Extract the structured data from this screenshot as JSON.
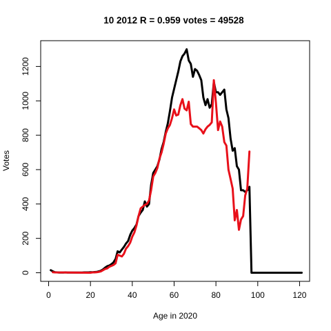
{
  "chart_data": {
    "type": "line",
    "title": "10 2012 R = 0.959 votes = 49528",
    "xlabel": "Age in 2020",
    "ylabel": "Votes",
    "xlim": [
      -3.8,
      124.8
    ],
    "ylim": [
      -50,
      1350
    ],
    "xticks": [
      0,
      20,
      40,
      60,
      80,
      100,
      120
    ],
    "yticks": [
      0,
      200,
      400,
      600,
      800,
      1000,
      1200
    ],
    "grid": false,
    "legend": "none",
    "series": [
      {
        "color": "#000000",
        "points": [
          [
            1,
            15
          ],
          [
            2,
            8
          ],
          [
            3,
            3
          ],
          [
            4,
            2
          ],
          [
            5,
            1
          ],
          [
            6,
            1
          ],
          [
            7,
            1
          ],
          [
            8,
            2
          ],
          [
            9,
            1
          ],
          [
            10,
            1
          ],
          [
            11,
            1
          ],
          [
            12,
            1
          ],
          [
            13,
            1
          ],
          [
            14,
            1
          ],
          [
            15,
            1
          ],
          [
            16,
            1
          ],
          [
            17,
            2
          ],
          [
            18,
            2
          ],
          [
            19,
            2
          ],
          [
            20,
            3
          ],
          [
            21,
            3
          ],
          [
            22,
            4
          ],
          [
            23,
            5
          ],
          [
            24,
            8
          ],
          [
            25,
            12
          ],
          [
            26,
            20
          ],
          [
            27,
            30
          ],
          [
            28,
            38
          ],
          [
            29,
            42
          ],
          [
            30,
            50
          ],
          [
            31,
            60
          ],
          [
            32,
            80
          ],
          [
            33,
            125
          ],
          [
            34,
            118
          ],
          [
            35,
            135
          ],
          [
            36,
            150
          ],
          [
            37,
            170
          ],
          [
            38,
            185
          ],
          [
            39,
            220
          ],
          [
            40,
            245
          ],
          [
            41,
            260
          ],
          [
            42,
            280
          ],
          [
            43,
            330
          ],
          [
            44,
            350
          ],
          [
            45,
            365
          ],
          [
            46,
            415
          ],
          [
            47,
            385
          ],
          [
            48,
            400
          ],
          [
            49,
            510
          ],
          [
            50,
            580
          ],
          [
            51,
            600
          ],
          [
            52,
            620
          ],
          [
            53,
            660
          ],
          [
            54,
            720
          ],
          [
            55,
            760
          ],
          [
            56,
            820
          ],
          [
            57,
            870
          ],
          [
            58,
            940
          ],
          [
            59,
            1020
          ],
          [
            60,
            1070
          ],
          [
            61,
            1120
          ],
          [
            62,
            1170
          ],
          [
            63,
            1230
          ],
          [
            64,
            1260
          ],
          [
            65,
            1275
          ],
          [
            66,
            1300
          ],
          [
            67,
            1235
          ],
          [
            68,
            1215
          ],
          [
            69,
            1140
          ],
          [
            70,
            1185
          ],
          [
            71,
            1175
          ],
          [
            72,
            1150
          ],
          [
            73,
            1120
          ],
          [
            74,
            1020
          ],
          [
            75,
            975
          ],
          [
            76,
            1010
          ],
          [
            77,
            960
          ],
          [
            78,
            980
          ],
          [
            79,
            1110
          ],
          [
            80,
            1050
          ],
          [
            81,
            1050
          ],
          [
            82,
            1035
          ],
          [
            83,
            1050
          ],
          [
            84,
            1065
          ],
          [
            85,
            950
          ],
          [
            86,
            900
          ],
          [
            87,
            780
          ],
          [
            88,
            710
          ],
          [
            89,
            725
          ],
          [
            90,
            620
          ],
          [
            91,
            600
          ],
          [
            92,
            480
          ],
          [
            93,
            480
          ],
          [
            94,
            470
          ],
          [
            95,
            480
          ],
          [
            96,
            500
          ],
          [
            97,
            0
          ],
          [
            98,
            0
          ],
          [
            99,
            0
          ],
          [
            100,
            0
          ],
          [
            105,
            0
          ],
          [
            110,
            0
          ],
          [
            115,
            0
          ],
          [
            120,
            0
          ],
          [
            121,
            0
          ]
        ]
      },
      {
        "color": "#e8101a",
        "points": [
          [
            2,
            3
          ],
          [
            3,
            2
          ],
          [
            20,
            0
          ],
          [
            21,
            2
          ],
          [
            22,
            2
          ],
          [
            23,
            3
          ],
          [
            24,
            5
          ],
          [
            25,
            8
          ],
          [
            26,
            15
          ],
          [
            27,
            22
          ],
          [
            28,
            25
          ],
          [
            29,
            35
          ],
          [
            30,
            40
          ],
          [
            31,
            45
          ],
          [
            32,
            55
          ],
          [
            33,
            105
          ],
          [
            34,
            100
          ],
          [
            35,
            95
          ],
          [
            36,
            110
          ],
          [
            37,
            140
          ],
          [
            38,
            155
          ],
          [
            39,
            175
          ],
          [
            40,
            210
          ],
          [
            41,
            235
          ],
          [
            42,
            275
          ],
          [
            43,
            330
          ],
          [
            44,
            375
          ],
          [
            45,
            385
          ],
          [
            46,
            395
          ],
          [
            47,
            400
          ],
          [
            48,
            420
          ],
          [
            49,
            480
          ],
          [
            50,
            560
          ],
          [
            51,
            580
          ],
          [
            52,
            610
          ],
          [
            53,
            665
          ],
          [
            54,
            700
          ],
          [
            55,
            750
          ],
          [
            56,
            810
          ],
          [
            57,
            840
          ],
          [
            58,
            860
          ],
          [
            59,
            900
          ],
          [
            60,
            950
          ],
          [
            61,
            915
          ],
          [
            62,
            920
          ],
          [
            63,
            975
          ],
          [
            64,
            1010
          ],
          [
            65,
            955
          ],
          [
            66,
            945
          ],
          [
            67,
            995
          ],
          [
            68,
            865
          ],
          [
            69,
            850
          ],
          [
            70,
            850
          ],
          [
            71,
            850
          ],
          [
            72,
            840
          ],
          [
            73,
            830
          ],
          [
            74,
            810
          ],
          [
            75,
            835
          ],
          [
            76,
            850
          ],
          [
            77,
            860
          ],
          [
            78,
            875
          ],
          [
            79,
            1120
          ],
          [
            80,
            990
          ],
          [
            81,
            830
          ],
          [
            82,
            880
          ],
          [
            83,
            850
          ],
          [
            84,
            760
          ],
          [
            85,
            740
          ],
          [
            86,
            600
          ],
          [
            87,
            545
          ],
          [
            88,
            490
          ],
          [
            89,
            305
          ],
          [
            90,
            365
          ],
          [
            91,
            250
          ],
          [
            92,
            310
          ],
          [
            93,
            330
          ],
          [
            94,
            450
          ],
          [
            95,
            490
          ],
          [
            96,
            705
          ]
        ]
      }
    ]
  }
}
